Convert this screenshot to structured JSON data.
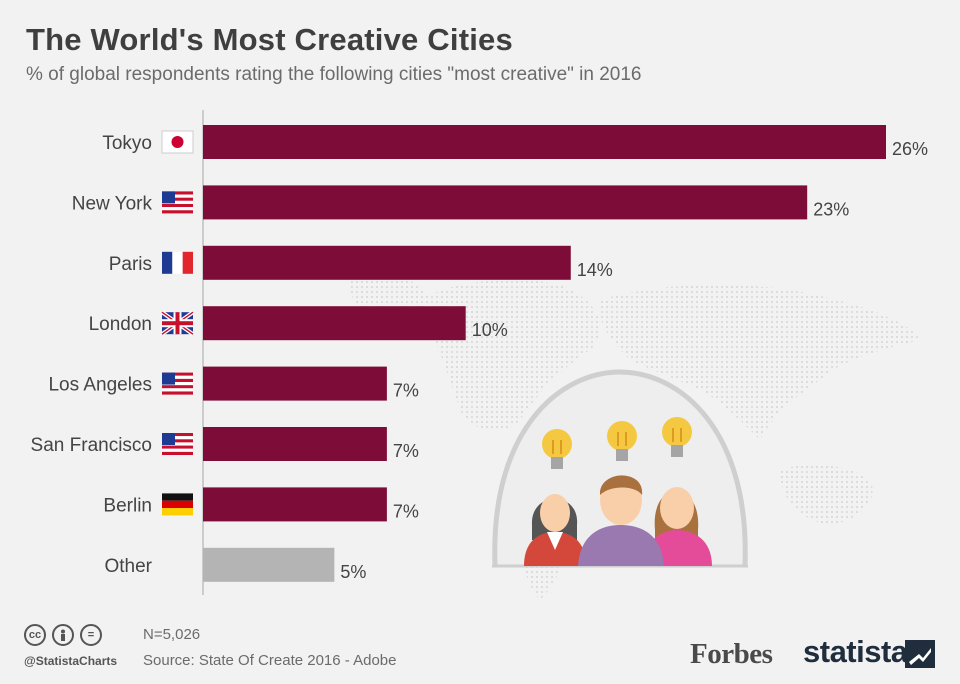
{
  "title": "The World's Most Creative Cities",
  "subtitle": "% of global respondents rating the following cities \"most creative\" in 2016",
  "colors": {
    "bar": "#7e0c38",
    "other": "#b4b4b4",
    "text": "#444444"
  },
  "chart_data": {
    "type": "bar",
    "orientation": "horizontal",
    "categories": [
      "Tokyo",
      "New York",
      "Paris",
      "London",
      "Los Angeles",
      "San Francisco",
      "Berlin",
      "Other"
    ],
    "values": [
      26,
      23,
      14,
      10,
      7,
      7,
      7,
      5
    ],
    "value_labels": [
      "26%",
      "23%",
      "14%",
      "10%",
      "7%",
      "7%",
      "7%",
      "5%"
    ],
    "flags": [
      "japan",
      "usa",
      "france",
      "uk",
      "usa",
      "usa",
      "germany",
      ""
    ],
    "unit": "%",
    "title": "The World's Most Creative Cities",
    "xlabel": "",
    "ylabel": "",
    "xlim": [
      0,
      26
    ],
    "grid": false,
    "legend": "none"
  },
  "footer": {
    "handle": "@StatistaCharts",
    "sample": "N=5,026",
    "source": "Source: State Of Create 2016 - Adobe",
    "brand_forbes": "Forbes",
    "brand_statista": "statista",
    "license_icons": [
      "cc-icon",
      "by-icon",
      "nd-icon"
    ]
  }
}
